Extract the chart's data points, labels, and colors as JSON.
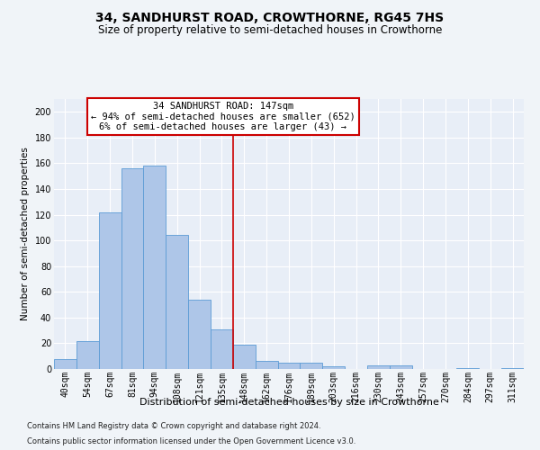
{
  "title": "34, SANDHURST ROAD, CROWTHORNE, RG45 7HS",
  "subtitle": "Size of property relative to semi-detached houses in Crowthorne",
  "xlabel": "Distribution of semi-detached houses by size in Crowthorne",
  "ylabel": "Number of semi-detached properties",
  "footer1": "Contains HM Land Registry data © Crown copyright and database right 2024.",
  "footer2": "Contains public sector information licensed under the Open Government Licence v3.0.",
  "property_label": "34 SANDHURST ROAD: 147sqm",
  "smaller_text": "← 94% of semi-detached houses are smaller (652)",
  "larger_text": "6% of semi-detached houses are larger (43) →",
  "bar_labels": [
    "40sqm",
    "54sqm",
    "67sqm",
    "81sqm",
    "94sqm",
    "108sqm",
    "121sqm",
    "135sqm",
    "148sqm",
    "162sqm",
    "176sqm",
    "189sqm",
    "203sqm",
    "216sqm",
    "230sqm",
    "243sqm",
    "257sqm",
    "270sqm",
    "284sqm",
    "297sqm",
    "311sqm"
  ],
  "bar_values": [
    8,
    22,
    122,
    156,
    158,
    104,
    54,
    31,
    19,
    6,
    5,
    5,
    2,
    0,
    3,
    3,
    0,
    0,
    1,
    0,
    1
  ],
  "bar_color": "#aec6e8",
  "bar_edge_color": "#5b9bd5",
  "vline_color": "#cc0000",
  "bg_color": "#e8eef7",
  "fig_bg_color": "#f0f4f8",
  "annotation_box_facecolor": "#ffffff",
  "annotation_box_edgecolor": "#cc0000",
  "ylim": [
    0,
    210
  ],
  "yticks": [
    0,
    20,
    40,
    60,
    80,
    100,
    120,
    140,
    160,
    180,
    200
  ],
  "grid_color": "#ffffff",
  "vline_x_index": 8,
  "title_fontsize": 10,
  "subtitle_fontsize": 8.5,
  "xlabel_fontsize": 8,
  "ylabel_fontsize": 7.5,
  "tick_fontsize": 7,
  "annot_fontsize": 7.5,
  "footer_fontsize": 6
}
